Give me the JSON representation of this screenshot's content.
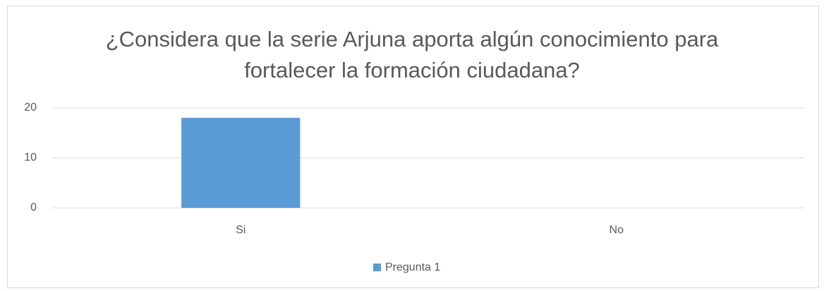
{
  "chart_data": {
    "type": "bar",
    "title": "¿Considera que la serie Arjuna aporta algún conocimiento para fortalecer la formación ciudadana?",
    "categories": [
      "Si",
      "No"
    ],
    "series": [
      {
        "name": "Pregunta 1",
        "color": "#5b9bd5",
        "values": [
          18,
          0
        ]
      }
    ],
    "ylim": [
      0,
      20
    ],
    "yticks": [
      0,
      10,
      20
    ],
    "grid": true,
    "legend": "bottom"
  }
}
